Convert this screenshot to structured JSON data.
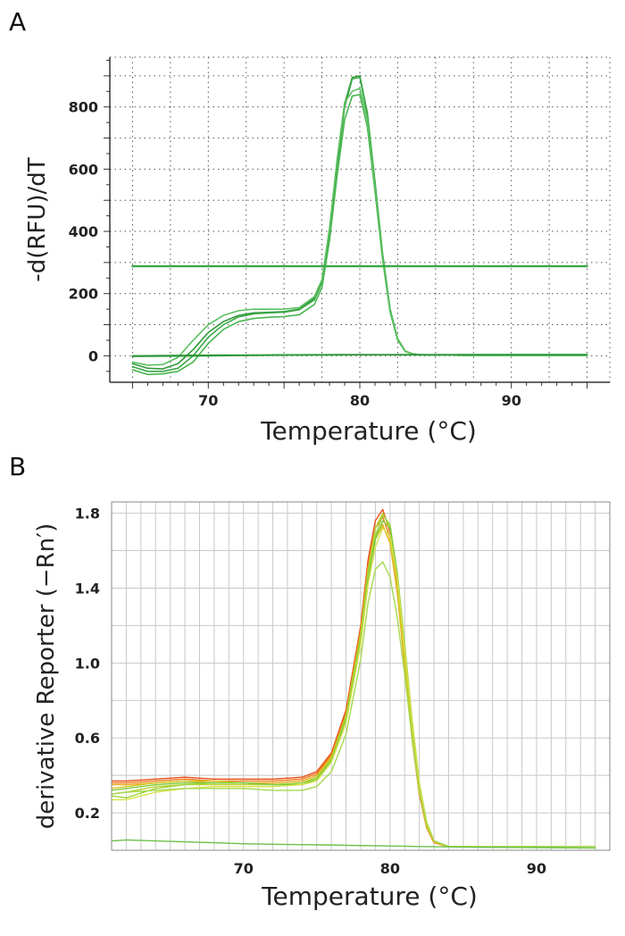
{
  "panels": [
    {
      "letter": "A"
    },
    {
      "letter": "B"
    }
  ],
  "chart_data": [
    {
      "panel": "A",
      "type": "line",
      "title": "",
      "xlabel": "Temperature  (°C)",
      "ylabel": "-d(RFU)/dT",
      "xlim": [
        63.5,
        96.5
      ],
      "ylim": [
        -85,
        960
      ],
      "xticks": [
        70,
        80,
        90
      ],
      "yticks": [
        0,
        200,
        400,
        600,
        800
      ],
      "grid": "dotted",
      "colors": [
        "#2f9a3a",
        "#3aa845",
        "#48b550",
        "#5cc060",
        "#259033"
      ],
      "series": [
        {
          "x": [
            65,
            66,
            67,
            68,
            69,
            70,
            71,
            72,
            73,
            74,
            75,
            76,
            77,
            77.5,
            78,
            78.5,
            79,
            79.5,
            80,
            80.5,
            81,
            81.5,
            82,
            82.5,
            83,
            83.5,
            84,
            85,
            86,
            88,
            90,
            92,
            95
          ],
          "y": [
            -25,
            -40,
            -42,
            -25,
            20,
            75,
            110,
            130,
            138,
            140,
            142,
            150,
            185,
            240,
            400,
            620,
            810,
            895,
            900,
            780,
            560,
            330,
            150,
            55,
            15,
            6,
            3,
            2,
            2,
            1,
            1,
            1,
            1
          ]
        },
        {
          "x": [
            65,
            66,
            67,
            68,
            69,
            70,
            71,
            72,
            73,
            74,
            75,
            76,
            77,
            77.5,
            78,
            78.5,
            79,
            79.5,
            80,
            80.5,
            81,
            81.5,
            82,
            82.5,
            83,
            83.5,
            84,
            85,
            86,
            88,
            90,
            92,
            95
          ],
          "y": [
            -35,
            -50,
            -50,
            -40,
            0,
            60,
            100,
            125,
            135,
            138,
            140,
            148,
            180,
            235,
            390,
            610,
            800,
            890,
            895,
            775,
            555,
            325,
            145,
            52,
            14,
            6,
            3,
            2,
            2,
            1,
            1,
            1,
            1
          ]
        },
        {
          "x": [
            65,
            66,
            67,
            68,
            69,
            70,
            71,
            72,
            73,
            74,
            75,
            76,
            77,
            77.5,
            78,
            78.5,
            79,
            79.5,
            80,
            80.5,
            81,
            81.5,
            82,
            82.5,
            83,
            83.5,
            84,
            85,
            86,
            88,
            90,
            92,
            95
          ],
          "y": [
            -45,
            -60,
            -58,
            -50,
            -20,
            40,
            85,
            110,
            120,
            124,
            126,
            132,
            165,
            220,
            370,
            580,
            760,
            835,
            840,
            735,
            530,
            310,
            140,
            50,
            14,
            6,
            3,
            2,
            2,
            1,
            1,
            1,
            1
          ]
        },
        {
          "x": [
            65,
            66,
            67,
            68,
            69,
            70,
            71,
            72,
            73,
            74,
            75,
            76,
            77,
            77.5,
            78,
            78.5,
            79,
            79.5,
            80,
            80.5,
            81,
            81.5,
            82,
            82.5,
            83,
            83.5,
            84,
            85,
            86,
            88,
            90,
            92,
            95
          ],
          "y": [
            -20,
            -30,
            -28,
            -5,
            50,
            100,
            130,
            145,
            150,
            150,
            150,
            155,
            190,
            245,
            410,
            630,
            815,
            850,
            860,
            760,
            545,
            320,
            145,
            52,
            14,
            6,
            3,
            2,
            2,
            1,
            1,
            1,
            1
          ]
        },
        {
          "x": [
            65,
            70,
            75,
            80,
            85,
            90,
            95
          ],
          "y": [
            0,
            2,
            3,
            4,
            4,
            4,
            4
          ]
        },
        {
          "x": [
            65,
            70,
            75,
            80,
            85,
            90,
            95
          ],
          "y": [
            -2,
            0,
            2,
            3,
            3,
            4,
            4
          ]
        },
        {
          "x": [
            65,
            95
          ],
          "y": [
            288,
            288
          ]
        }
      ]
    },
    {
      "panel": "B",
      "type": "line",
      "title": "",
      "xlabel": "Temperature (°C)",
      "ylabel": "derivative Reporter (−Rn′)",
      "xlim": [
        61,
        95
      ],
      "ylim": [
        0,
        1.86
      ],
      "xticks": [
        70,
        80,
        90
      ],
      "yticks": [
        0.2,
        0.6,
        1.0,
        1.4,
        1.8
      ],
      "ytick_labels": [
        "0.2",
        "0.6",
        "1.0",
        "1.4",
        "1.8"
      ],
      "grid": "solid",
      "colors": [
        "#e8501a",
        "#f07a1c",
        "#e9a81f",
        "#d6c625",
        "#b9d22c",
        "#9cd33a",
        "#7fcc3e",
        "#d8e14a",
        "#a5d84f",
        "#6cc04a"
      ],
      "series": [
        {
          "x": [
            61,
            62,
            64,
            66,
            68,
            70,
            72,
            74,
            75,
            76,
            77,
            78,
            78.5,
            79,
            79.5,
            80,
            80.5,
            81,
            81.5,
            82,
            82.5,
            83,
            84,
            86,
            88,
            90,
            92,
            94
          ],
          "y": [
            0.37,
            0.37,
            0.38,
            0.39,
            0.38,
            0.38,
            0.38,
            0.39,
            0.42,
            0.52,
            0.75,
            1.2,
            1.55,
            1.76,
            1.82,
            1.7,
            1.4,
            1.0,
            0.6,
            0.3,
            0.12,
            0.04,
            0.02,
            0.02,
            0.02,
            0.02,
            0.02,
            0.02
          ]
        },
        {
          "x": [
            61,
            62,
            64,
            66,
            68,
            70,
            72,
            74,
            75,
            76,
            77,
            78,
            78.5,
            79,
            79.5,
            80,
            80.5,
            81,
            81.5,
            82,
            82.5,
            83,
            84,
            86,
            88,
            90,
            92,
            94
          ],
          "y": [
            0.36,
            0.36,
            0.37,
            0.38,
            0.37,
            0.37,
            0.37,
            0.38,
            0.41,
            0.51,
            0.73,
            1.18,
            1.52,
            1.72,
            1.78,
            1.67,
            1.38,
            0.99,
            0.6,
            0.3,
            0.12,
            0.04,
            0.02,
            0.02,
            0.02,
            0.02,
            0.02,
            0.02
          ]
        },
        {
          "x": [
            61,
            62,
            64,
            66,
            68,
            70,
            72,
            74,
            75,
            76,
            77,
            78,
            78.5,
            79,
            79.5,
            80,
            80.5,
            81,
            81.5,
            82,
            82.5,
            83,
            84,
            86,
            88,
            90,
            92,
            94
          ],
          "y": [
            0.35,
            0.35,
            0.36,
            0.37,
            0.36,
            0.36,
            0.36,
            0.37,
            0.4,
            0.5,
            0.72,
            1.15,
            1.48,
            1.68,
            1.74,
            1.64,
            1.37,
            0.98,
            0.6,
            0.3,
            0.12,
            0.04,
            0.02,
            0.02,
            0.02,
            0.02,
            0.02,
            0.02
          ]
        },
        {
          "x": [
            61,
            62,
            64,
            66,
            68,
            70,
            72,
            74,
            75,
            76,
            77,
            78,
            78.5,
            79,
            79.5,
            80,
            80.5,
            81,
            81.5,
            82,
            82.5,
            83,
            84,
            86,
            88,
            90,
            92,
            94
          ],
          "y": [
            0.33,
            0.34,
            0.36,
            0.37,
            0.37,
            0.36,
            0.35,
            0.36,
            0.39,
            0.49,
            0.71,
            1.14,
            1.47,
            1.66,
            1.73,
            1.65,
            1.39,
            1.01,
            0.62,
            0.32,
            0.13,
            0.05,
            0.02,
            0.02,
            0.02,
            0.02,
            0.02,
            0.02
          ]
        },
        {
          "x": [
            61,
            62,
            64,
            66,
            68,
            70,
            72,
            74,
            75,
            76,
            77,
            78,
            78.5,
            79,
            79.5,
            80,
            80.5,
            81,
            81.5,
            82,
            82.5,
            83,
            84,
            86,
            88,
            90,
            92,
            94
          ],
          "y": [
            0.3,
            0.31,
            0.34,
            0.35,
            0.35,
            0.35,
            0.35,
            0.36,
            0.39,
            0.49,
            0.72,
            1.16,
            1.5,
            1.72,
            1.8,
            1.72,
            1.45,
            1.06,
            0.66,
            0.34,
            0.14,
            0.05,
            0.02,
            0.02,
            0.02,
            0.02,
            0.02,
            0.02
          ]
        },
        {
          "x": [
            61,
            62,
            64,
            66,
            68,
            70,
            72,
            74,
            75,
            76,
            77,
            78,
            78.5,
            79,
            79.5,
            80,
            80.5,
            81,
            81.5,
            82,
            82.5,
            83,
            84,
            86,
            88,
            90,
            92,
            94
          ],
          "y": [
            0.29,
            0.28,
            0.33,
            0.35,
            0.36,
            0.36,
            0.35,
            0.36,
            0.38,
            0.48,
            0.7,
            1.13,
            1.46,
            1.68,
            1.79,
            1.74,
            1.48,
            1.1,
            0.7,
            0.36,
            0.15,
            0.05,
            0.02,
            0.02,
            0.02,
            0.02,
            0.02,
            0.02
          ]
        },
        {
          "x": [
            61,
            62,
            64,
            66,
            68,
            70,
            72,
            74,
            75,
            76,
            77,
            78,
            78.5,
            79,
            79.5,
            80,
            80.5,
            81,
            81.5,
            82,
            82.5,
            83,
            84,
            86,
            88,
            90,
            92,
            94
          ],
          "y": [
            0.32,
            0.33,
            0.35,
            0.36,
            0.36,
            0.36,
            0.35,
            0.35,
            0.38,
            0.48,
            0.7,
            1.12,
            1.45,
            1.66,
            1.76,
            1.72,
            1.47,
            1.1,
            0.7,
            0.36,
            0.15,
            0.05,
            0.02,
            0.02,
            0.02,
            0.02,
            0.02,
            0.02
          ]
        },
        {
          "x": [
            61,
            62,
            64,
            66,
            68,
            70,
            72,
            74,
            75,
            76,
            77,
            78,
            78.5,
            79,
            79.5,
            80,
            80.5,
            81,
            81.5,
            82,
            82.5,
            83,
            84,
            86,
            88,
            90,
            92,
            94
          ],
          "y": [
            0.27,
            0.27,
            0.31,
            0.33,
            0.34,
            0.34,
            0.34,
            0.35,
            0.37,
            0.47,
            0.68,
            1.1,
            1.42,
            1.62,
            1.72,
            1.68,
            1.45,
            1.08,
            0.7,
            0.36,
            0.15,
            0.05,
            0.02,
            0.02,
            0.02,
            0.02,
            0.02,
            0.02
          ]
        },
        {
          "x": [
            61,
            62,
            64,
            66,
            68,
            70,
            72,
            74,
            75,
            76,
            77,
            78,
            78.5,
            79,
            79.5,
            80,
            80.5,
            81,
            81.5,
            82,
            82.5,
            83,
            84,
            86,
            88,
            90,
            92,
            94
          ],
          "y": [
            0.3,
            0.31,
            0.32,
            0.33,
            0.33,
            0.33,
            0.32,
            0.32,
            0.34,
            0.42,
            0.62,
            1.02,
            1.32,
            1.5,
            1.54,
            1.46,
            1.24,
            0.94,
            0.6,
            0.32,
            0.14,
            0.05,
            0.02,
            0.02,
            0.02,
            0.02,
            0.02,
            0.02
          ]
        },
        {
          "x": [
            61,
            62,
            64,
            66,
            68,
            70,
            72,
            74,
            76,
            78,
            80,
            82,
            84,
            86,
            88,
            90,
            92,
            94
          ],
          "y": [
            0.05,
            0.055,
            0.05,
            0.045,
            0.04,
            0.035,
            0.032,
            0.03,
            0.028,
            0.025,
            0.023,
            0.02,
            0.018,
            0.016,
            0.015,
            0.014,
            0.013,
            0.012
          ]
        }
      ]
    }
  ]
}
